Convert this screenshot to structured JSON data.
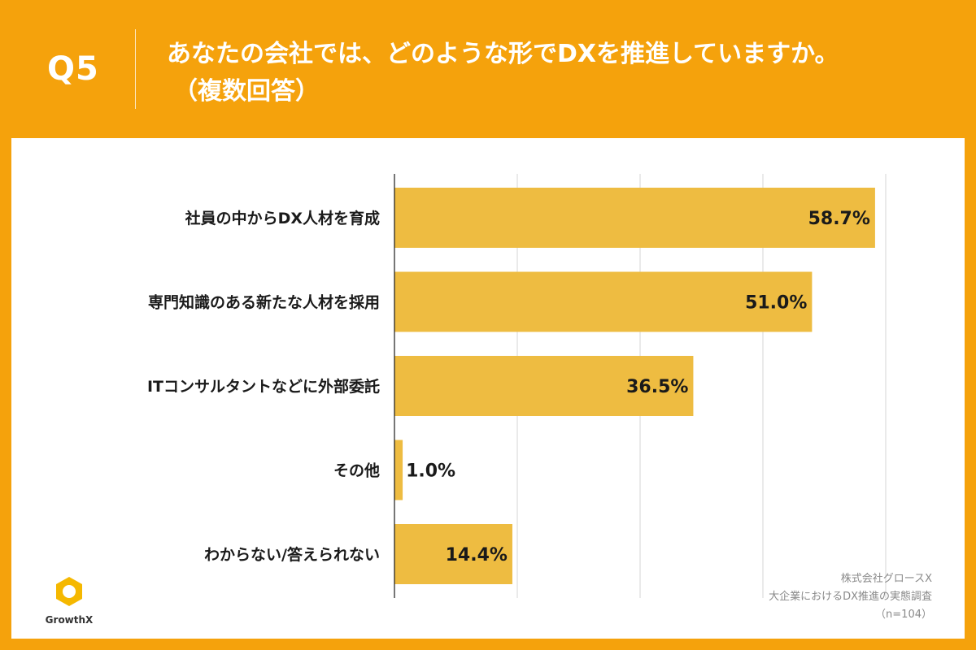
{
  "header": {
    "question_number": "Q5",
    "title_line1": "あなたの会社では、どのような形でDXを推進していますか。",
    "title_line2": "（複数回答）"
  },
  "footer": {
    "source_company": "株式会社グロースX",
    "source_survey": "大企業におけるDX推進の実態調査",
    "sample_size": "（n=104）"
  },
  "logo": {
    "brand_name": "GrowthX",
    "icon": "hexagon-ring-icon"
  },
  "colors": {
    "background": "#f5a20c",
    "bar": "#eebc41",
    "panel": "#ffffff"
  },
  "chart_data": {
    "type": "bar",
    "orientation": "horizontal",
    "title": "あなたの会社では、どのような形でDXを推進していますか。（複数回答）",
    "categories": [
      "社員の中からDX人材を育成",
      "専門知識のある新たな人材を採用",
      "ITコンサルタントなどに外部委託",
      "その他",
      "わからない/答えられない"
    ],
    "values": [
      58.7,
      51.0,
      36.5,
      1.0,
      14.4
    ],
    "value_labels": [
      "58.7%",
      "51.0%",
      "36.5%",
      "1.0%",
      "14.4%"
    ],
    "unit": "%",
    "xlim": [
      0,
      60
    ],
    "grid_step": 15,
    "grid": true,
    "xlabel": "",
    "ylabel": ""
  }
}
